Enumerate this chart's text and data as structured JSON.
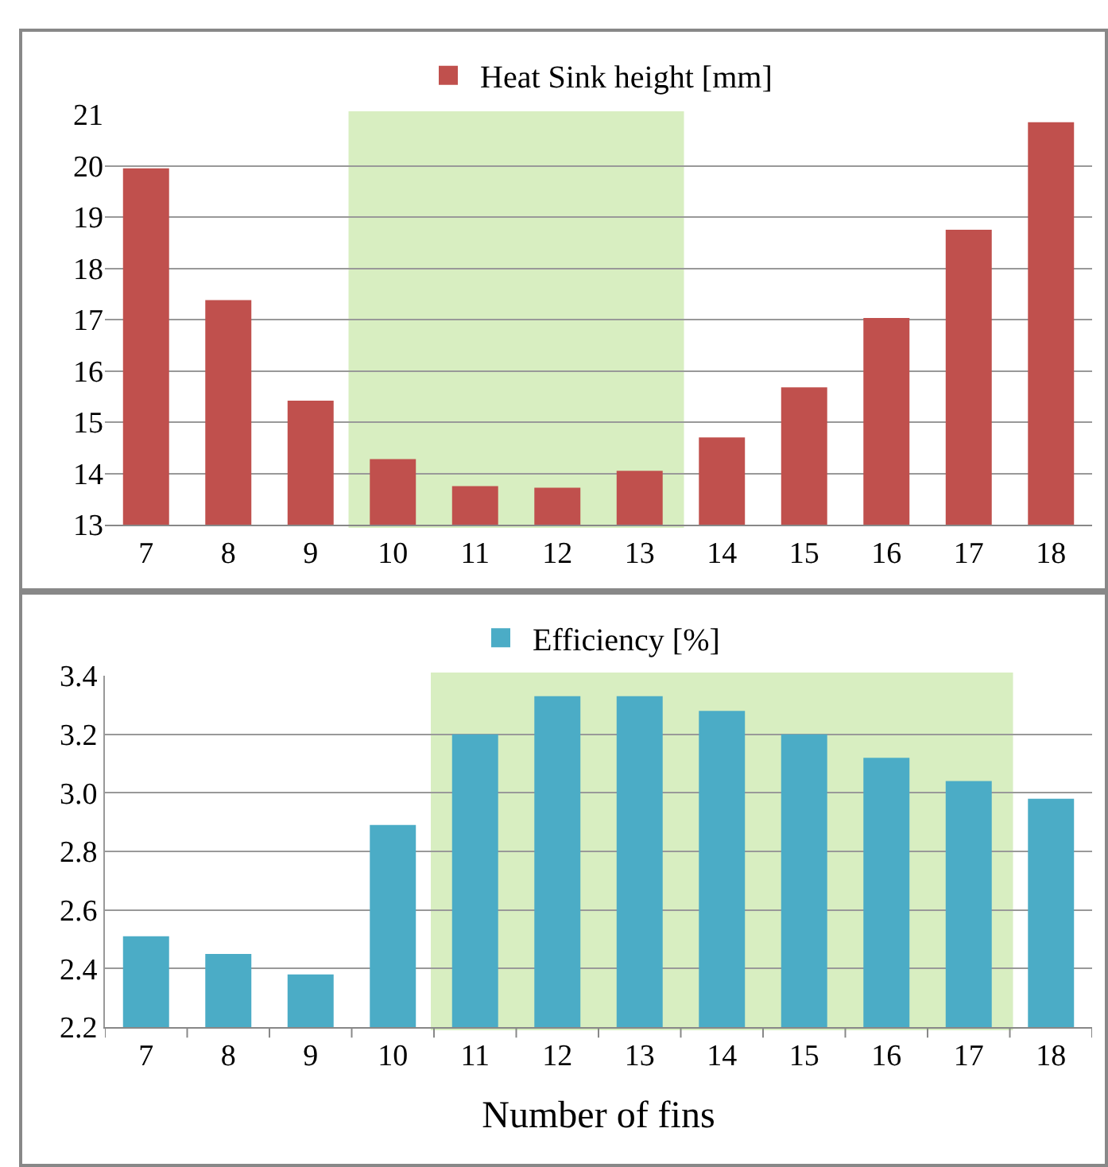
{
  "chart_data": [
    {
      "type": "bar",
      "categories": [
        "7",
        "8",
        "9",
        "10",
        "11",
        "12",
        "13",
        "14",
        "15",
        "16",
        "17",
        "18"
      ],
      "series": [
        {
          "name": "Heat Sink height [mm]",
          "color": "#c0504d",
          "values": [
            19.95,
            17.38,
            15.42,
            14.28,
            13.75,
            13.72,
            14.05,
            14.7,
            15.68,
            17.03,
            18.75,
            20.85
          ]
        }
      ],
      "ylim": [
        13,
        21
      ],
      "yticks": [
        13,
        14,
        15,
        16,
        17,
        18,
        19,
        20,
        21
      ],
      "grid": "y",
      "legend": "top",
      "bands": [
        {
          "axis": "x",
          "from": "10",
          "to": "13",
          "color": "#92d050"
        }
      ]
    },
    {
      "type": "bar",
      "categories": [
        "7",
        "8",
        "9",
        "10",
        "11",
        "12",
        "13",
        "14",
        "15",
        "16",
        "17",
        "18"
      ],
      "series": [
        {
          "name": "Efficiency [%]",
          "color": "#4bacc6",
          "values": [
            2.51,
            2.45,
            2.38,
            2.89,
            3.2,
            3.33,
            3.33,
            3.28,
            3.2,
            3.12,
            3.04,
            2.98
          ]
        }
      ],
      "xlabel": "Number of fins",
      "ylim": [
        2.2,
        3.4
      ],
      "yticks": [
        {
          "value": 2.2,
          "label": "2.2"
        },
        {
          "value": 2.4,
          "label": "2.4"
        },
        {
          "value": 2.6,
          "label": "2.6"
        },
        {
          "value": 2.8,
          "label": "2.8"
        },
        {
          "value": 3.0,
          "label": "3.0"
        },
        {
          "value": 3.2,
          "label": "3.2"
        },
        {
          "value": 3.4,
          "label": "3.4"
        }
      ],
      "grid": "y",
      "legend": "top",
      "bands": [
        {
          "axis": "x",
          "from": "11",
          "to": "17",
          "color": "#92d050"
        }
      ]
    }
  ]
}
